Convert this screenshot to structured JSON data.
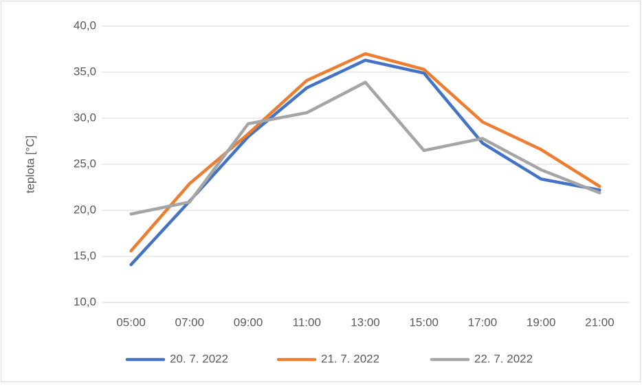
{
  "chart_data": {
    "type": "line",
    "y_label": "teplota [°C]",
    "categories": [
      "05:00",
      "07:00",
      "09:00",
      "11:00",
      "13:00",
      "15:00",
      "17:00",
      "19:00",
      "21:00"
    ],
    "series": [
      {
        "name": "20. 7. 2022",
        "color": "#4472c4",
        "values": [
          14.1,
          21.0,
          28.0,
          33.3,
          36.3,
          34.9,
          27.3,
          23.4,
          22.2
        ]
      },
      {
        "name": "21. 7. 2022",
        "color": "#ed7d31",
        "values": [
          15.6,
          22.9,
          28.3,
          34.1,
          37.0,
          35.3,
          29.6,
          26.6,
          22.6
        ]
      },
      {
        "name": "22. 7. 2022",
        "color": "#a5a5a5",
        "values": [
          19.6,
          20.9,
          29.4,
          30.6,
          33.9,
          26.5,
          27.8,
          24.4,
          21.9
        ]
      }
    ],
    "ylim": [
      10,
      40
    ],
    "yticks": [
      {
        "value": 10,
        "label": "10,0"
      },
      {
        "value": 15,
        "label": "15,0"
      },
      {
        "value": 20,
        "label": "20,0"
      },
      {
        "value": 25,
        "label": "25,0"
      },
      {
        "value": 30,
        "label": "30,0"
      },
      {
        "value": 35,
        "label": "35,0"
      },
      {
        "value": 40,
        "label": "40,0"
      }
    ],
    "grid": true,
    "legend": "bottom"
  }
}
